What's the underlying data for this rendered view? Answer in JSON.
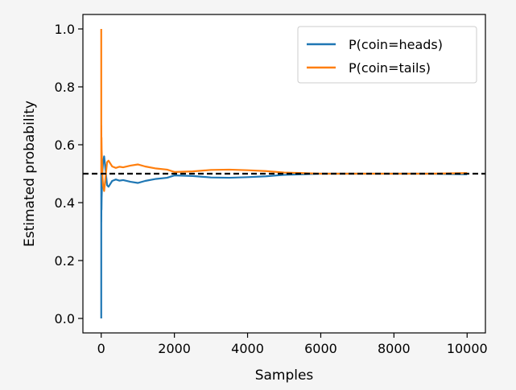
{
  "chart_data": {
    "type": "line",
    "xlabel": "Samples",
    "ylabel": "Estimated probability",
    "xlim": [
      -500,
      10500
    ],
    "ylim": [
      -0.05,
      1.05
    ],
    "x_ticks": [
      0,
      2000,
      4000,
      6000,
      8000,
      10000
    ],
    "y_ticks": [
      0.0,
      0.2,
      0.4,
      0.6,
      0.8,
      1.0
    ],
    "x_tick_labels": [
      "0",
      "2000",
      "4000",
      "6000",
      "8000",
      "10000"
    ],
    "y_tick_labels": [
      "0.0",
      "0.2",
      "0.4",
      "0.6",
      "0.8",
      "1.0"
    ],
    "grid": false,
    "legend_position": "top-right",
    "reference_line": {
      "y": 0.5,
      "style": "dashed",
      "color": "#000000"
    },
    "series": [
      {
        "name": "P(coin=heads)",
        "color": "#1f77b4",
        "x": [
          1,
          2,
          3,
          5,
          8,
          12,
          20,
          30,
          50,
          80,
          120,
          160,
          200,
          300,
          400,
          500,
          600,
          800,
          1000,
          1200,
          1500,
          1800,
          2000,
          2500,
          3000,
          3500,
          4000,
          4500,
          5000,
          5500,
          6000,
          7000,
          8000,
          9000,
          10000
        ],
        "y": [
          0.0,
          0.5,
          0.333,
          0.4,
          0.375,
          0.417,
          0.45,
          0.5,
          0.54,
          0.56,
          0.51,
          0.46,
          0.455,
          0.475,
          0.48,
          0.476,
          0.478,
          0.472,
          0.468,
          0.475,
          0.482,
          0.486,
          0.494,
          0.492,
          0.487,
          0.486,
          0.488,
          0.491,
          0.496,
          0.498,
          0.5,
          0.5,
          0.5,
          0.5,
          0.498
        ]
      },
      {
        "name": "P(coin=tails)",
        "color": "#ff7f0e",
        "x": [
          1,
          2,
          3,
          5,
          8,
          12,
          20,
          30,
          50,
          80,
          120,
          160,
          200,
          300,
          400,
          500,
          600,
          800,
          1000,
          1200,
          1500,
          1800,
          2000,
          2500,
          3000,
          3500,
          4000,
          4500,
          5000,
          5500,
          6000,
          7000,
          8000,
          9000,
          10000
        ],
        "y": [
          1.0,
          0.5,
          0.667,
          0.6,
          0.625,
          0.583,
          0.55,
          0.5,
          0.46,
          0.44,
          0.49,
          0.54,
          0.545,
          0.525,
          0.52,
          0.524,
          0.522,
          0.528,
          0.532,
          0.525,
          0.518,
          0.514,
          0.506,
          0.508,
          0.513,
          0.514,
          0.512,
          0.509,
          0.504,
          0.502,
          0.5,
          0.5,
          0.5,
          0.5,
          0.502
        ]
      }
    ]
  }
}
